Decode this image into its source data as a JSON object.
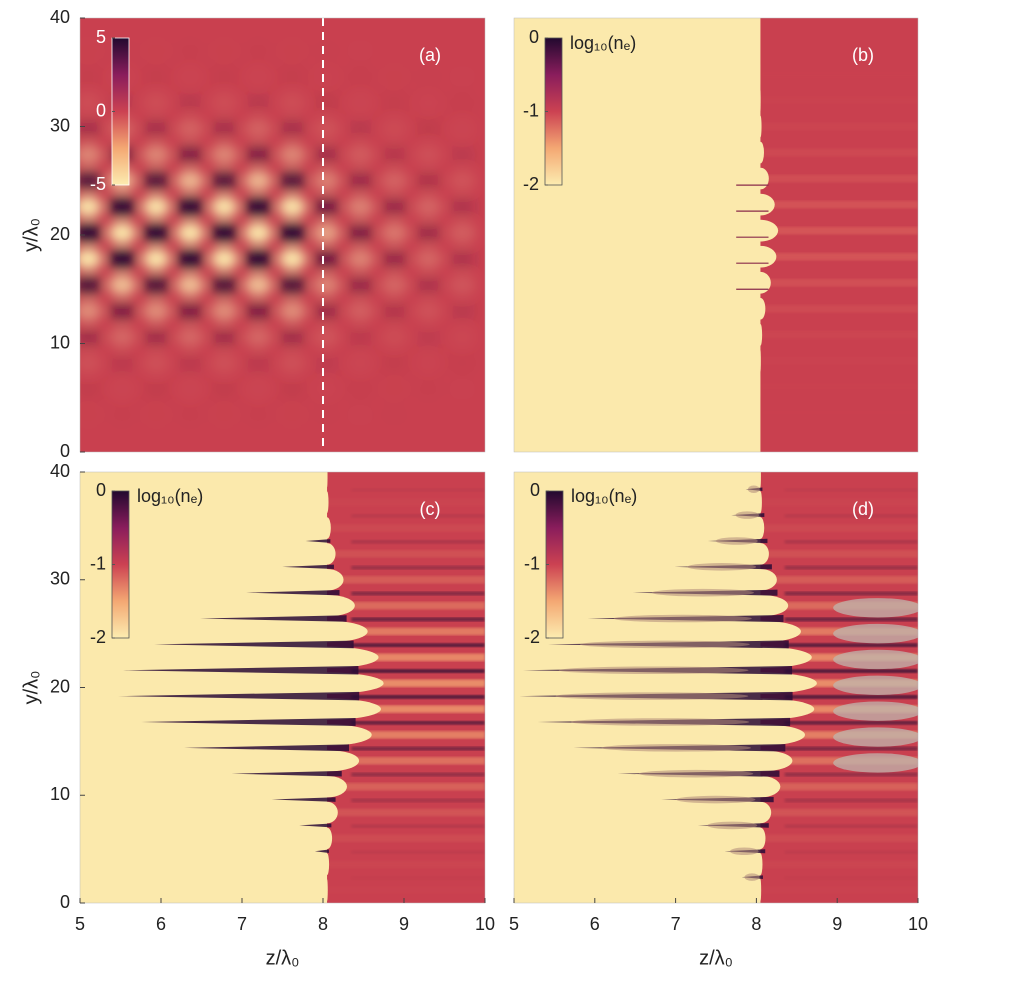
{
  "chart_data": [
    {
      "type": "heatmap",
      "panel_label": "(a)",
      "ylabel": "y/λ₀",
      "xlim": [
        5,
        10
      ],
      "ylim": [
        0,
        40
      ],
      "yticks": [
        0,
        10,
        20,
        30,
        40
      ],
      "vline": 8,
      "colorbar": {
        "lim": [
          -5,
          5
        ],
        "ticks": [
          5,
          0,
          -5
        ]
      }
    },
    {
      "type": "heatmap",
      "panel_label": "(b)",
      "xlim": [
        5,
        10
      ],
      "ylim": [
        0,
        40
      ],
      "boundary": 8.05,
      "colorbar": {
        "label": "log₁₀(nₑ)",
        "lim": [
          -2,
          0
        ],
        "ticks": [
          0,
          -1,
          -2
        ]
      }
    },
    {
      "type": "heatmap",
      "panel_label": "(c)",
      "xlabel": "z/λ₀",
      "ylabel": "y/λ₀",
      "xlim": [
        5,
        10
      ],
      "ylim": [
        0,
        40
      ],
      "xticks": [
        5,
        6,
        7,
        8,
        9,
        10
      ],
      "yticks": [
        0,
        10,
        20,
        30,
        40
      ],
      "boundary": 8.05,
      "colorbar": {
        "label": "log₁₀(nₑ)",
        "lim": [
          -2,
          0
        ],
        "ticks": [
          0,
          -1,
          -2
        ]
      }
    },
    {
      "type": "heatmap",
      "panel_label": "(d)",
      "xlabel": "z/λ₀",
      "xlim": [
        5,
        10
      ],
      "ylim": [
        0,
        40
      ],
      "xticks": [
        5,
        6,
        7,
        8,
        9,
        10
      ],
      "boundary": 8.05,
      "colorbar": {
        "label": "log₁₀(nₑ)",
        "lim": [
          -2,
          0
        ],
        "ticks": [
          0,
          -1,
          -2
        ]
      }
    }
  ]
}
